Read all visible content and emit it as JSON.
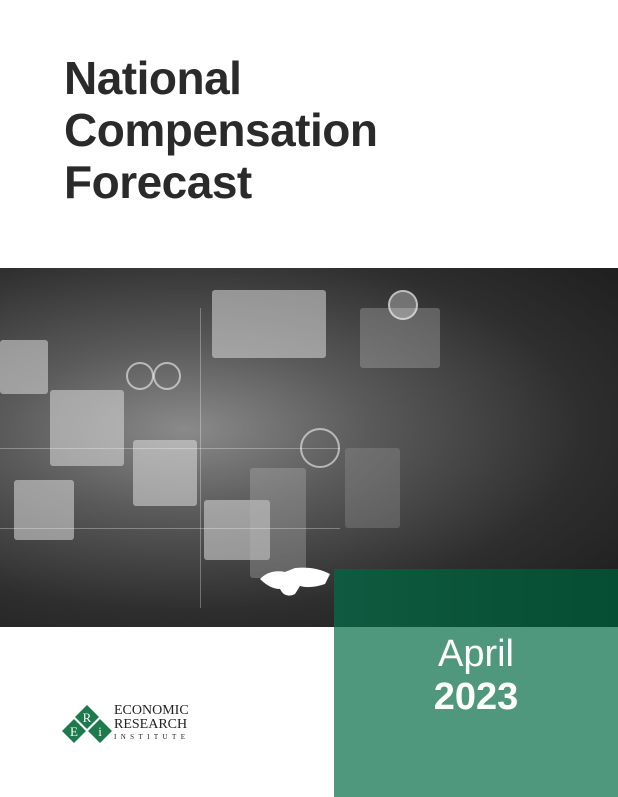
{
  "title": {
    "lines": [
      "National",
      "Compensation",
      "Forecast"
    ]
  },
  "date": {
    "month": "April",
    "year": "2023"
  },
  "logo": {
    "letters": "ERi",
    "line1": "ECONOMIC",
    "line2": "RESEARCH",
    "line3": "INSTITUTE"
  },
  "colors": {
    "title": "#2a2a2a",
    "green_dark": "#0a5439",
    "green_light": "#4f977d"
  }
}
